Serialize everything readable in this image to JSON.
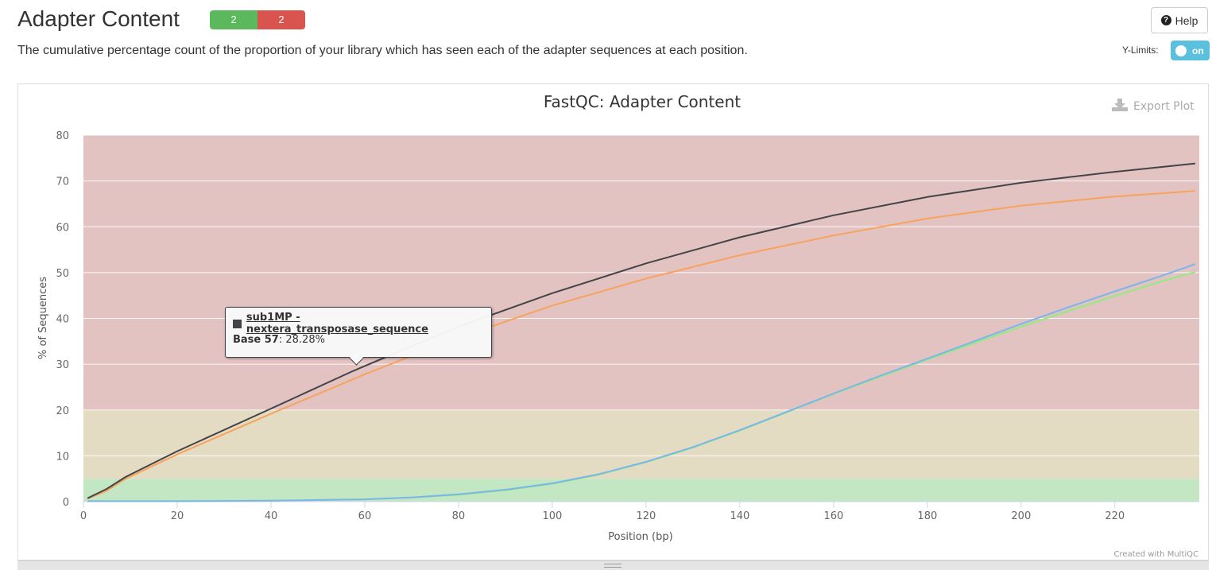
{
  "header": {
    "title": "Adapter Content",
    "badges": {
      "pass": "2",
      "fail": "2"
    },
    "help_label": "Help",
    "description": "The cumulative percentage count of the proportion of your library which has seen each of the adapter sequences at each position.",
    "ylimits_label": "Y-Limits:",
    "ylimits_toggle": "on"
  },
  "plot": {
    "export_label": "Export Plot",
    "credit": "Created with MultiQC"
  },
  "tooltip": {
    "series": "sub1MP - nextera_transposase_sequence",
    "key": "Base 57",
    "value": ": 28.28%"
  },
  "colors": {
    "pass": "#5cb85c",
    "fail": "#d9534f",
    "band_fail": "#e3c2c2",
    "band_warn": "#e4dbc3",
    "band_pass": "#c3e6c3"
  },
  "chart_data": {
    "type": "line",
    "title": "FastQC: Adapter Content",
    "xlabel": "Position (bp)",
    "ylabel": "% of Sequences",
    "xlim": [
      0,
      238
    ],
    "ylim": [
      0,
      80
    ],
    "xticks": [
      0,
      20,
      40,
      60,
      80,
      100,
      120,
      140,
      160,
      180,
      200,
      220
    ],
    "yticks": [
      0,
      10,
      20,
      30,
      40,
      50,
      60,
      70,
      80
    ],
    "grid": true,
    "bands": [
      {
        "from": 0,
        "to": 5,
        "color": "#c3e6c3"
      },
      {
        "from": 5,
        "to": 20,
        "color": "#e4dbc3"
      },
      {
        "from": 20,
        "to": 80,
        "color": "#e3c2c2"
      }
    ],
    "series": [
      {
        "color": "#434348",
        "x": [
          1,
          5,
          9,
          20,
          40,
          57,
          60,
          80,
          100,
          120,
          140,
          160,
          180,
          200,
          220,
          237
        ],
        "values": [
          0.8,
          2.8,
          5.4,
          11,
          20.3,
          28.28,
          29.6,
          38.2,
          45.5,
          52.0,
          57.7,
          62.5,
          66.5,
          69.6,
          72.0,
          73.8
        ]
      },
      {
        "color": "#f7a35c",
        "x": [
          1,
          5,
          9,
          20,
          40,
          57,
          60,
          80,
          100,
          120,
          140,
          160,
          180,
          200,
          220,
          237
        ],
        "values": [
          0.7,
          2.4,
          5.0,
          10.3,
          19.2,
          26.5,
          27.8,
          35.8,
          42.8,
          48.7,
          53.8,
          58.1,
          61.8,
          64.6,
          66.6,
          67.8
        ]
      },
      {
        "color": "#7cb5ec",
        "x": [
          1,
          20,
          40,
          60,
          70,
          80,
          90,
          100,
          110,
          120,
          130,
          140,
          150,
          160,
          170,
          180,
          190,
          200,
          210,
          220,
          230,
          237
        ],
        "values": [
          0.1,
          0.1,
          0.2,
          0.5,
          0.9,
          1.6,
          2.6,
          4.0,
          6.0,
          8.7,
          11.9,
          15.6,
          19.6,
          23.6,
          27.5,
          31.2,
          35.0,
          38.8,
          42.4,
          45.9,
          49.3,
          51.8
        ]
      },
      {
        "color": "#90ed7d",
        "x": [
          1,
          20,
          40,
          60,
          70,
          80,
          90,
          100,
          110,
          120,
          130,
          140,
          150,
          160,
          170,
          180,
          190,
          200,
          210,
          220,
          230,
          237
        ],
        "values": [
          0.1,
          0.1,
          0.2,
          0.5,
          0.9,
          1.5,
          2.5,
          3.9,
          5.9,
          8.6,
          11.8,
          15.5,
          19.5,
          23.5,
          27.3,
          31.0,
          34.6,
          38.2,
          41.6,
          44.9,
          48.1,
          50.1
        ]
      }
    ]
  }
}
